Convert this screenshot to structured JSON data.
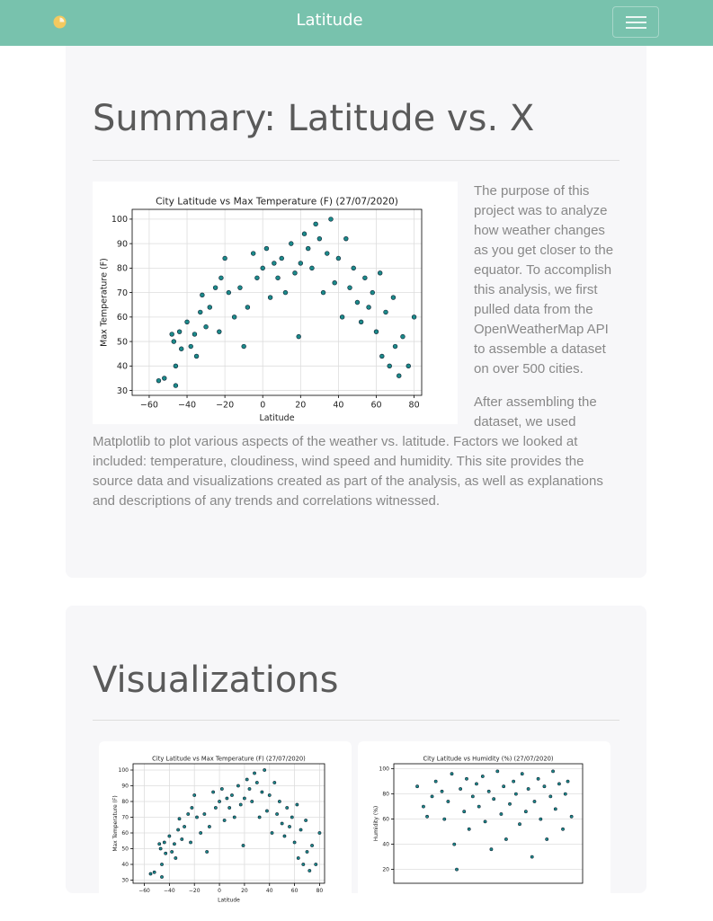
{
  "navbar": {
    "brand": "Latitude"
  },
  "summary": {
    "title": "Summary: Latitude vs. X",
    "paragraphs": [
      "The purpose of this project was to analyze how weather changes as you get closer to the equator. To accomplish this analysis, we first pulled data from the OpenWeatherMap API to assemble a dataset on over 500 cities.",
      "After assembling the dataset, we used Matplotlib to plot various aspects of the weather vs. latitude. Factors we looked at included: temperature, cloudiness, wind speed and humidity. This site provides the source data and visualizations created as part of the analysis, as well as explanations and descriptions of any trends and correlations witnessed."
    ]
  },
  "visualizations": {
    "title": "Visualizations"
  },
  "chart_data": [
    {
      "type": "scatter",
      "title": "City Latitude vs Max Temperature (F) (27/07/2020)",
      "xlabel": "Latitude",
      "ylabel": "Max Temperature (F)",
      "color": "#1b8a8a",
      "grid": true,
      "xlim": [
        -69,
        84
      ],
      "ylim": [
        28,
        104
      ],
      "xticks": [
        {
          "value": -60,
          "label": "−60"
        },
        {
          "value": -40,
          "label": "−40"
        },
        {
          "value": -20,
          "label": "−20"
        },
        0,
        20,
        40,
        60,
        80
      ],
      "yticks": [
        30,
        40,
        50,
        60,
        70,
        80,
        90,
        100
      ],
      "x": [
        -55,
        -52,
        -48,
        -47,
        -46,
        -46,
        -44,
        -43,
        -40,
        -38,
        -36,
        -35,
        -33,
        -32,
        -30,
        -28,
        -25,
        -23,
        -22,
        -20,
        -18,
        -15,
        -12,
        -10,
        -8,
        -5,
        -3,
        0,
        2,
        4,
        6,
        8,
        10,
        12,
        15,
        17,
        19,
        20,
        22,
        24,
        26,
        28,
        30,
        32,
        34,
        36,
        38,
        40,
        42,
        44,
        46,
        48,
        50,
        52,
        54,
        56,
        58,
        60,
        62,
        63,
        65,
        67,
        69,
        70,
        72,
        74,
        77,
        80
      ],
      "values": [
        34,
        35,
        53,
        50,
        40,
        32,
        54,
        47,
        58,
        48,
        53,
        44,
        62,
        69,
        56,
        64,
        72,
        54,
        76,
        84,
        70,
        60,
        72,
        48,
        64,
        86,
        76,
        80,
        88,
        68,
        82,
        76,
        84,
        70,
        90,
        78,
        52,
        82,
        94,
        88,
        80,
        98,
        92,
        70,
        86,
        100,
        74,
        84,
        60,
        92,
        72,
        80,
        66,
        58,
        76,
        64,
        70,
        54,
        78,
        44,
        62,
        40,
        68,
        48,
        36,
        52,
        40,
        60
      ]
    },
    {
      "type": "scatter",
      "title": "City Latitude vs Humidity (%) (27/07/2020)",
      "ylabel": "Humidity (%)",
      "color": "#1b8a8a",
      "grid": true,
      "xlim": [
        -69,
        84
      ],
      "ylim": [
        9,
        104
      ],
      "yticks": [
        20,
        40,
        60,
        80,
        100
      ],
      "x": [
        -50,
        -45,
        -42,
        -38,
        -35,
        -30,
        -28,
        -25,
        -22,
        -20,
        -18,
        -15,
        -12,
        -10,
        -8,
        -5,
        -2,
        0,
        3,
        5,
        8,
        10,
        12,
        15,
        18,
        20,
        22,
        25,
        28,
        30,
        33,
        35,
        38,
        40,
        43,
        45,
        48,
        50,
        53,
        55,
        58,
        60,
        62,
        65,
        68,
        70,
        72,
        75
      ],
      "values": [
        86,
        70,
        62,
        78,
        90,
        82,
        60,
        74,
        96,
        40,
        20,
        84,
        66,
        92,
        52,
        78,
        88,
        70,
        94,
        58,
        82,
        36,
        76,
        98,
        64,
        86,
        44,
        72,
        90,
        80,
        56,
        96,
        66,
        84,
        30,
        74,
        92,
        60,
        86,
        44,
        78,
        98,
        68,
        88,
        52,
        80,
        90,
        62
      ]
    }
  ]
}
